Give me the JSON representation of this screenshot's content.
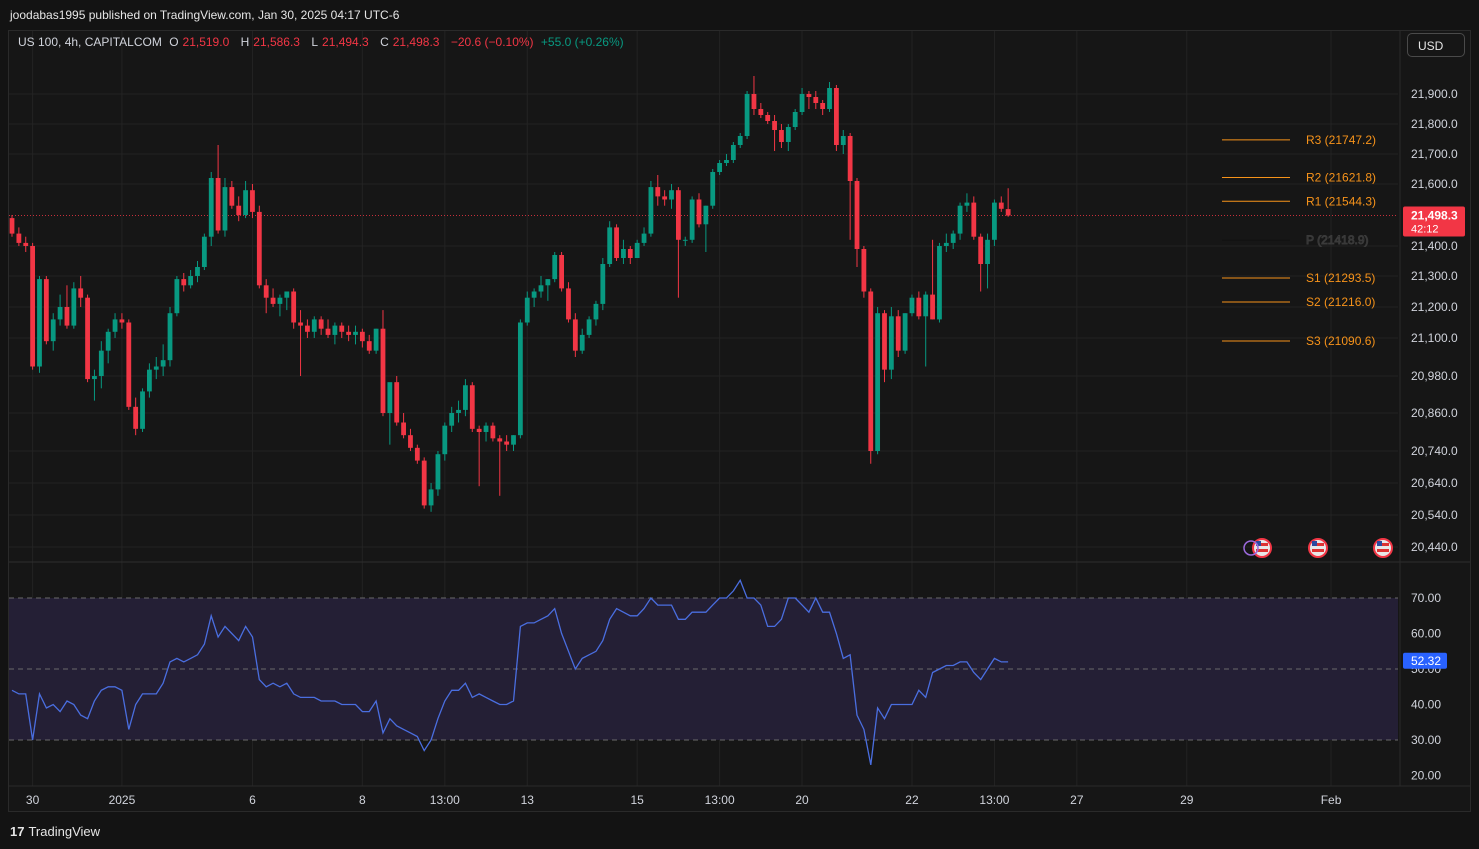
{
  "header": {
    "published_text": "joodabas1995 published on TradingView.com, Jan 30, 2025 04:17 UTC-6"
  },
  "legend": {
    "symbol": "US 100, 4h, CAPITALCOM",
    "open_label": "O",
    "open": "21,519.0",
    "high_label": "H",
    "high": "21,586.3",
    "low_label": "L",
    "low": "21,494.3",
    "close_label": "C",
    "close": "21,498.3",
    "change": "−20.6 (−0.10%)",
    "extra_change": "+55.0 (+0.26%)"
  },
  "currency_button": "USD",
  "price_tag": {
    "price": "21,498.3",
    "countdown": "42:12"
  },
  "rsi_tag": "52.32",
  "footer": {
    "logo_text": "TradingView",
    "logo_mark": "17"
  },
  "colors": {
    "up": "#089981",
    "down": "#f23645",
    "pivot": "#f7931a",
    "rsi_line": "#4a6ee0",
    "rsi_band": "#241f35"
  },
  "chart_data": {
    "type": "candlestick",
    "price_axis_ticks": [
      21900,
      21800,
      21700,
      21600,
      21400,
      21300,
      21200,
      21100,
      20980,
      20860,
      20740,
      20640,
      20540,
      20440
    ],
    "price_axis_labels": [
      "21,900.0",
      "21,800.0",
      "21,700.0",
      "21,600.0",
      "21,400.0",
      "21,300.0",
      "21,200.0",
      "21,100.0",
      "20,980.0",
      "20,860.0",
      "20,740.0",
      "20,640.0",
      "20,540.0",
      "20,440.0"
    ],
    "last_price": 21498.3,
    "time_labels": [
      {
        "label": "30",
        "index": 3
      },
      {
        "label": "2025",
        "index": 16
      },
      {
        "label": "6",
        "index": 35
      },
      {
        "label": "8",
        "index": 51
      },
      {
        "label": "13:00",
        "index": 63
      },
      {
        "label": "13",
        "index": 75
      },
      {
        "label": "15",
        "index": 91
      },
      {
        "label": "13:00",
        "index": 103
      },
      {
        "label": "20",
        "index": 115
      },
      {
        "label": "22",
        "index": 131
      },
      {
        "label": "13:00",
        "index": 143
      },
      {
        "label": "27",
        "index": 155
      },
      {
        "label": "29",
        "index": 171
      },
      {
        "label": "Feb",
        "index": 192
      }
    ],
    "pivots": [
      {
        "name": "R3",
        "label": "R3 (21747.2)",
        "value": 21747.2
      },
      {
        "name": "R2",
        "label": "R2 (21621.8)",
        "value": 21621.8
      },
      {
        "name": "R1",
        "label": "R1 (21544.3)",
        "value": 21544.3
      },
      {
        "name": "P",
        "label": "P (21418.9)",
        "value": 21418.9
      },
      {
        "name": "S1",
        "label": "S1 (21293.5)",
        "value": 21293.5
      },
      {
        "name": "S2",
        "label": "S2 (21216.0)",
        "value": 21216.0
      },
      {
        "name": "S3",
        "label": "S3 (21090.6)",
        "value": 21090.6
      }
    ],
    "pivot_start_index": 177,
    "candles": [
      [
        21490,
        21500,
        21430,
        21440
      ],
      [
        21440,
        21460,
        21400,
        21410
      ],
      [
        21410,
        21430,
        21380,
        21400
      ],
      [
        21400,
        21410,
        21000,
        21010
      ],
      [
        21010,
        21300,
        20990,
        21290
      ],
      [
        21290,
        21300,
        21080,
        21090
      ],
      [
        21090,
        21180,
        21060,
        21160
      ],
      [
        21160,
        21240,
        21140,
        21200
      ],
      [
        21200,
        21270,
        21130,
        21140
      ],
      [
        21140,
        21280,
        21130,
        21260
      ],
      [
        21260,
        21300,
        21200,
        21230
      ],
      [
        21230,
        21240,
        20960,
        20970
      ],
      [
        20970,
        21000,
        20900,
        20980
      ],
      [
        20980,
        21090,
        20940,
        21060
      ],
      [
        21060,
        21130,
        21020,
        21120
      ],
      [
        21120,
        21180,
        21100,
        21160
      ],
      [
        21160,
        21180,
        21130,
        21150
      ],
      [
        21150,
        21160,
        20870,
        20880
      ],
      [
        20880,
        20910,
        20790,
        20810
      ],
      [
        20810,
        20940,
        20800,
        20930
      ],
      [
        20930,
        21020,
        20910,
        21000
      ],
      [
        21000,
        21040,
        20970,
        21010
      ],
      [
        21010,
        21080,
        20980,
        21030
      ],
      [
        21030,
        21200,
        21010,
        21180
      ],
      [
        21180,
        21300,
        21170,
        21290
      ],
      [
        21290,
        21310,
        21250,
        21270
      ],
      [
        21270,
        21320,
        21260,
        21300
      ],
      [
        21300,
        21350,
        21280,
        21330
      ],
      [
        21330,
        21440,
        21320,
        21430
      ],
      [
        21430,
        21640,
        21400,
        21620
      ],
      [
        21620,
        21730,
        21440,
        21450
      ],
      [
        21450,
        21620,
        21430,
        21590
      ],
      [
        21590,
        21610,
        21520,
        21530
      ],
      [
        21530,
        21560,
        21480,
        21500
      ],
      [
        21500,
        21610,
        21490,
        21580
      ],
      [
        21580,
        21600,
        21490,
        21510
      ],
      [
        21510,
        21530,
        21260,
        21270
      ],
      [
        21270,
        21290,
        21180,
        21230
      ],
      [
        21230,
        21260,
        21200,
        21210
      ],
      [
        21210,
        21240,
        21170,
        21230
      ],
      [
        21230,
        21250,
        21190,
        21250
      ],
      [
        21250,
        21260,
        21130,
        21150
      ],
      [
        21150,
        21190,
        20980,
        21140
      ],
      [
        21140,
        21160,
        21100,
        21120
      ],
      [
        21120,
        21170,
        21100,
        21160
      ],
      [
        21160,
        21170,
        21110,
        21130
      ],
      [
        21130,
        21160,
        21100,
        21110
      ],
      [
        21110,
        21150,
        21080,
        21140
      ],
      [
        21140,
        21150,
        21100,
        21120
      ],
      [
        21120,
        21140,
        21090,
        21110
      ],
      [
        21110,
        21140,
        21080,
        21120
      ],
      [
        21120,
        21130,
        21070,
        21090
      ],
      [
        21090,
        21110,
        21050,
        21060
      ],
      [
        21060,
        21130,
        21050,
        21130
      ],
      [
        21130,
        21190,
        20850,
        20860
      ],
      [
        20860,
        20950,
        20760,
        20960
      ],
      [
        20960,
        20980,
        20820,
        20830
      ],
      [
        20830,
        20860,
        20780,
        20790
      ],
      [
        20790,
        20810,
        20740,
        20750
      ],
      [
        20750,
        20760,
        20700,
        20710
      ],
      [
        20710,
        20720,
        20560,
        20570
      ],
      [
        20570,
        20640,
        20550,
        20620
      ],
      [
        20620,
        20740,
        20600,
        20730
      ],
      [
        20730,
        20830,
        20710,
        20820
      ],
      [
        20820,
        20880,
        20800,
        20860
      ],
      [
        20860,
        20900,
        20830,
        20870
      ],
      [
        20870,
        20970,
        20850,
        20950
      ],
      [
        20950,
        20960,
        20800,
        20810
      ],
      [
        20810,
        20820,
        20630,
        20800
      ],
      [
        20800,
        20830,
        20770,
        20820
      ],
      [
        20820,
        20830,
        20770,
        20780
      ],
      [
        20780,
        20790,
        20600,
        20770
      ],
      [
        20770,
        20790,
        20740,
        20760
      ],
      [
        20760,
        20790,
        20740,
        20790
      ],
      [
        20790,
        21160,
        20780,
        21150
      ],
      [
        21150,
        21250,
        21140,
        21230
      ],
      [
        21230,
        21260,
        21200,
        21250
      ],
      [
        21250,
        21300,
        21230,
        21270
      ],
      [
        21270,
        21290,
        21220,
        21290
      ],
      [
        21290,
        21380,
        21280,
        21370
      ],
      [
        21370,
        21380,
        21250,
        21260
      ],
      [
        21260,
        21280,
        21150,
        21160
      ],
      [
        21160,
        21180,
        21040,
        21060
      ],
      [
        21060,
        21130,
        21050,
        21110
      ],
      [
        21110,
        21170,
        21100,
        21160
      ],
      [
        21160,
        21220,
        21140,
        21210
      ],
      [
        21210,
        21360,
        21190,
        21340
      ],
      [
        21340,
        21480,
        21330,
        21460
      ],
      [
        21460,
        21470,
        21350,
        21360
      ],
      [
        21360,
        21420,
        21340,
        21390
      ],
      [
        21390,
        21400,
        21340,
        21360
      ],
      [
        21360,
        21420,
        21360,
        21410
      ],
      [
        21410,
        21460,
        21400,
        21440
      ],
      [
        21440,
        21610,
        21430,
        21590
      ],
      [
        21590,
        21630,
        21530,
        21560
      ],
      [
        21560,
        21580,
        21530,
        21550
      ],
      [
        21550,
        21600,
        21520,
        21580
      ],
      [
        21580,
        21590,
        21230,
        21420
      ],
      [
        21420,
        21430,
        21400,
        21420
      ],
      [
        21420,
        21560,
        21410,
        21550
      ],
      [
        21550,
        21570,
        21460,
        21470
      ],
      [
        21470,
        21530,
        21380,
        21530
      ],
      [
        21530,
        21650,
        21520,
        21640
      ],
      [
        21640,
        21680,
        21630,
        21670
      ],
      [
        21670,
        21700,
        21660,
        21680
      ],
      [
        21680,
        21740,
        21670,
        21730
      ],
      [
        21730,
        21770,
        21720,
        21760
      ],
      [
        21760,
        21910,
        21750,
        21900
      ],
      [
        21900,
        21960,
        21830,
        21850
      ],
      [
        21850,
        21870,
        21820,
        21830
      ],
      [
        21830,
        21840,
        21800,
        21810
      ],
      [
        21810,
        21830,
        21710,
        21780
      ],
      [
        21780,
        21800,
        21720,
        21740
      ],
      [
        21740,
        21800,
        21710,
        21790
      ],
      [
        21790,
        21850,
        21780,
        21840
      ],
      [
        21840,
        21920,
        21830,
        21900
      ],
      [
        21900,
        21910,
        21850,
        21890
      ],
      [
        21890,
        21910,
        21850,
        21870
      ],
      [
        21870,
        21880,
        21830,
        21850
      ],
      [
        21850,
        21940,
        21840,
        21920
      ],
      [
        21920,
        21930,
        21710,
        21730
      ],
      [
        21730,
        21780,
        21700,
        21760
      ],
      [
        21760,
        21770,
        21420,
        21610
      ],
      [
        21610,
        21620,
        21330,
        21390
      ],
      [
        21390,
        21400,
        21230,
        21250
      ],
      [
        21250,
        21260,
        20700,
        20740
      ],
      [
        20740,
        21200,
        20730,
        21180
      ],
      [
        21180,
        21190,
        20960,
        21000
      ],
      [
        21000,
        21200,
        20970,
        21170
      ],
      [
        21170,
        21190,
        21040,
        21060
      ],
      [
        21060,
        21180,
        21050,
        21180
      ],
      [
        21180,
        21240,
        21170,
        21230
      ],
      [
        21230,
        21250,
        21160,
        21170
      ],
      [
        21170,
        21250,
        21010,
        21240
      ],
      [
        21240,
        21420,
        21160,
        21160
      ],
      [
        21160,
        21410,
        21150,
        21400
      ],
      [
        21400,
        21440,
        21380,
        21410
      ],
      [
        21410,
        21450,
        21390,
        21440
      ],
      [
        21440,
        21540,
        21420,
        21530
      ],
      [
        21530,
        21570,
        21510,
        21540
      ],
      [
        21540,
        21560,
        21420,
        21430
      ],
      [
        21430,
        21440,
        21250,
        21340
      ],
      [
        21340,
        21440,
        21260,
        21420
      ],
      [
        21420,
        21550,
        21400,
        21540
      ],
      [
        21540,
        21560,
        21510,
        21520
      ],
      [
        21519,
        21586.3,
        21494.3,
        21498.3
      ]
    ],
    "rsi": {
      "name": "RSI",
      "levels": [
        70,
        50,
        30
      ],
      "axis_ticks": [
        70,
        60,
        50,
        40,
        30,
        20
      ],
      "axis_labels": [
        "70.00",
        "60.00",
        "50.00",
        "40.00",
        "30.00",
        "20.00"
      ],
      "last_value": 52.32,
      "values": [
        44,
        43,
        43,
        30,
        43,
        39,
        40,
        38,
        41,
        40,
        37,
        36,
        41,
        44,
        45,
        45,
        44,
        33,
        40,
        43,
        43,
        43,
        46,
        52,
        53,
        52,
        53,
        54,
        57,
        65,
        59,
        62,
        60,
        58,
        62,
        59,
        47,
        45,
        46,
        45,
        46,
        43,
        42,
        42,
        42,
        41,
        41,
        41,
        40,
        40,
        40,
        38,
        38,
        41,
        32,
        36,
        34,
        33,
        32,
        31,
        27,
        30,
        36,
        41,
        44,
        44,
        46,
        42,
        43,
        42,
        41,
        40,
        40,
        41,
        62,
        63,
        63,
        64,
        65,
        67,
        60,
        55,
        50,
        53,
        54,
        55,
        58,
        64,
        67,
        66,
        65,
        65,
        67,
        70,
        68,
        68,
        68,
        64,
        64,
        66,
        66,
        66,
        68,
        70,
        70,
        72,
        75,
        70,
        70,
        68,
        62,
        62,
        64,
        70,
        70,
        68,
        66,
        70,
        66,
        66,
        60,
        53,
        54,
        37,
        33,
        23,
        39,
        36,
        40,
        40,
        40,
        40,
        44,
        42,
        49,
        50,
        51,
        51,
        52,
        52,
        49,
        47,
        50,
        53,
        52,
        52
      ]
    }
  }
}
